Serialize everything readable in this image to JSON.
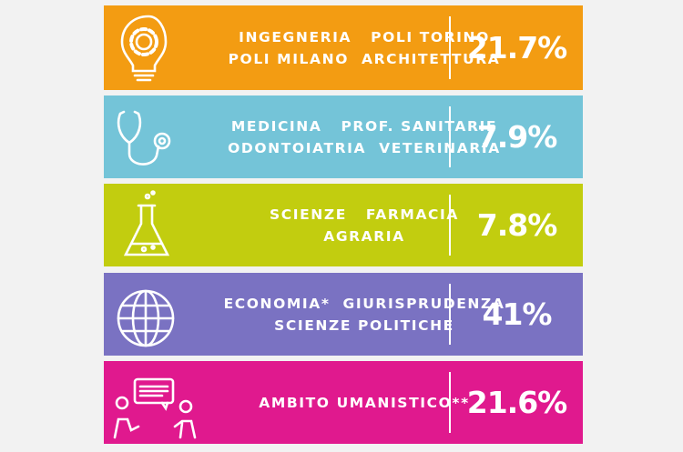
{
  "rows": [
    {
      "line1": "INGEGNERIA   POLI TORINO",
      "line2": "POLI MILANO  ARCHITETTURA",
      "value": "21.7%",
      "color": "#f39c12",
      "icon": "lightbulb-gear-icon"
    },
    {
      "line1": "MEDICINA   PROF. SANITARIE",
      "line2": "ODONTOIATRIA  VETERINARIA",
      "value": "7.9%",
      "color": "#74c4d8",
      "icon": "stethoscope-icon"
    },
    {
      "line1": "SCIENZE   FARMACIA",
      "line2": "AGRARIA",
      "value": "7.8%",
      "color": "#c2cd0f",
      "icon": "flask-icon"
    },
    {
      "line1": "ECONOMIA*  GIURISPRUDENZA",
      "line2": "SCIENZE POLITICHE",
      "value": "41%",
      "color": "#7a72c2",
      "icon": "globe-icon"
    },
    {
      "line1": "AMBITO UMANISTICO**",
      "line2": "",
      "value": "21.6%",
      "color": "#e0198e",
      "icon": "people-conversation-icon"
    }
  ]
}
